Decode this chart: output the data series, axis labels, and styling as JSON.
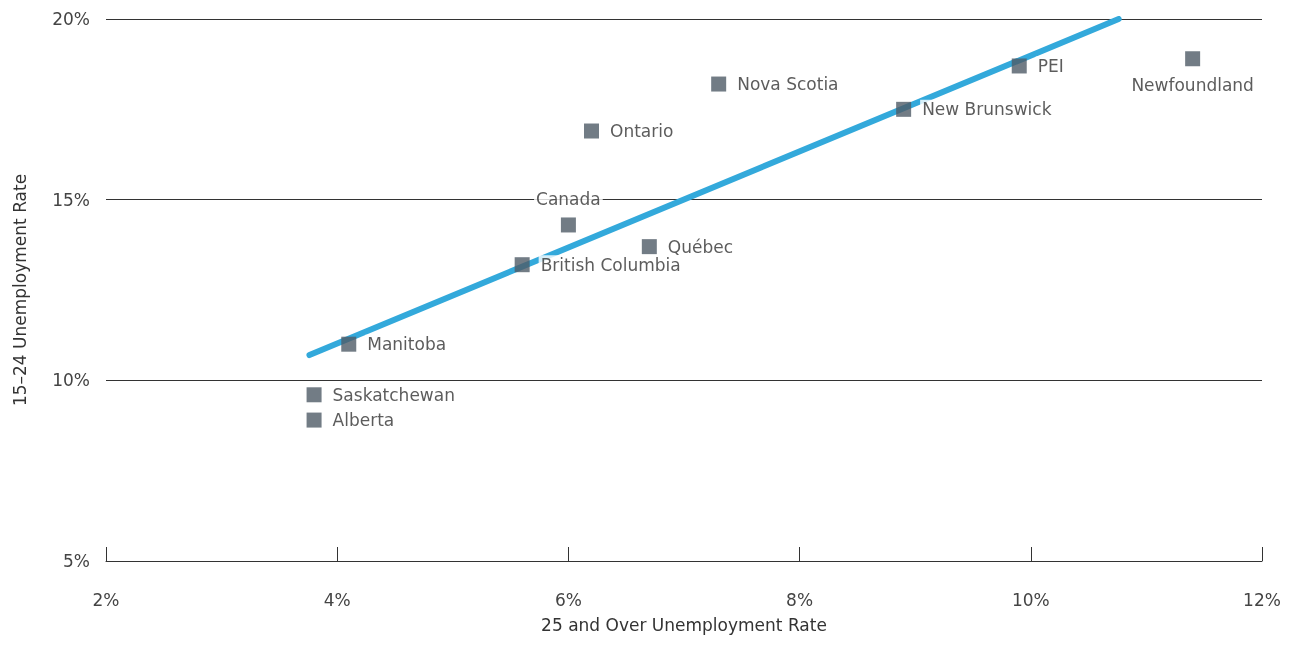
{
  "chart_data": {
    "type": "scatter",
    "xlabel": "25 and Over Unemployment Rate",
    "ylabel": "15–24 Unemployment Rate",
    "xlim": [
      2,
      12
    ],
    "xticks": [
      {
        "value": 2,
        "label": "2%"
      },
      {
        "value": 4,
        "label": "4%"
      },
      {
        "value": 6,
        "label": "6%"
      },
      {
        "value": 8,
        "label": "8%"
      },
      {
        "value": 10,
        "label": "10%"
      },
      {
        "value": 12,
        "label": "12%"
      }
    ],
    "ylim": [
      5,
      20
    ],
    "yticks": [
      {
        "value": 5,
        "label": "5%"
      },
      {
        "value": 10,
        "label": "10%"
      },
      {
        "value": 15,
        "label": "15%"
      },
      {
        "value": 20,
        "label": "20%"
      }
    ],
    "grid": "y",
    "marker": "square",
    "legend": false,
    "series": [
      {
        "type": "line",
        "marker": "none",
        "color": "#33a9db",
        "x": [
          3.76,
          10.76
        ],
        "values": [
          10.7,
          20.0
        ]
      },
      {
        "name": "Newfoundland",
        "color": "#4f5b66",
        "x": [
          11.4
        ],
        "values": [
          18.9
        ]
      },
      {
        "name": "PEI",
        "color": "#4f5b66",
        "x": [
          9.9
        ],
        "values": [
          18.7
        ]
      },
      {
        "name": "Nova Scotia",
        "color": "#4f5b66",
        "x": [
          7.3
        ],
        "values": [
          18.2
        ]
      },
      {
        "name": "New Brunswick",
        "color": "#4f5b66",
        "x": [
          8.9
        ],
        "values": [
          17.5
        ]
      },
      {
        "name": "Ontario",
        "color": "#4f5b66",
        "x": [
          6.2
        ],
        "values": [
          16.9
        ]
      },
      {
        "name": "Canada",
        "color": "#4f5b66",
        "x": [
          6.0
        ],
        "values": [
          14.3
        ]
      },
      {
        "name": "Québec",
        "color": "#4f5b66",
        "x": [
          6.7
        ],
        "values": [
          13.7
        ]
      },
      {
        "name": "British Columbia",
        "color": "#4f5b66",
        "x": [
          5.6
        ],
        "values": [
          13.2
        ]
      },
      {
        "name": "Manitoba",
        "color": "#4f5b66",
        "x": [
          4.1
        ],
        "values": [
          11.0
        ]
      },
      {
        "name": "Saskatchewan",
        "color": "#4f5b66",
        "x": [
          3.8
        ],
        "values": [
          9.6
        ]
      },
      {
        "name": "Alberta",
        "color": "#4f5b66",
        "x": [
          3.8
        ],
        "values": [
          8.9
        ]
      }
    ]
  }
}
